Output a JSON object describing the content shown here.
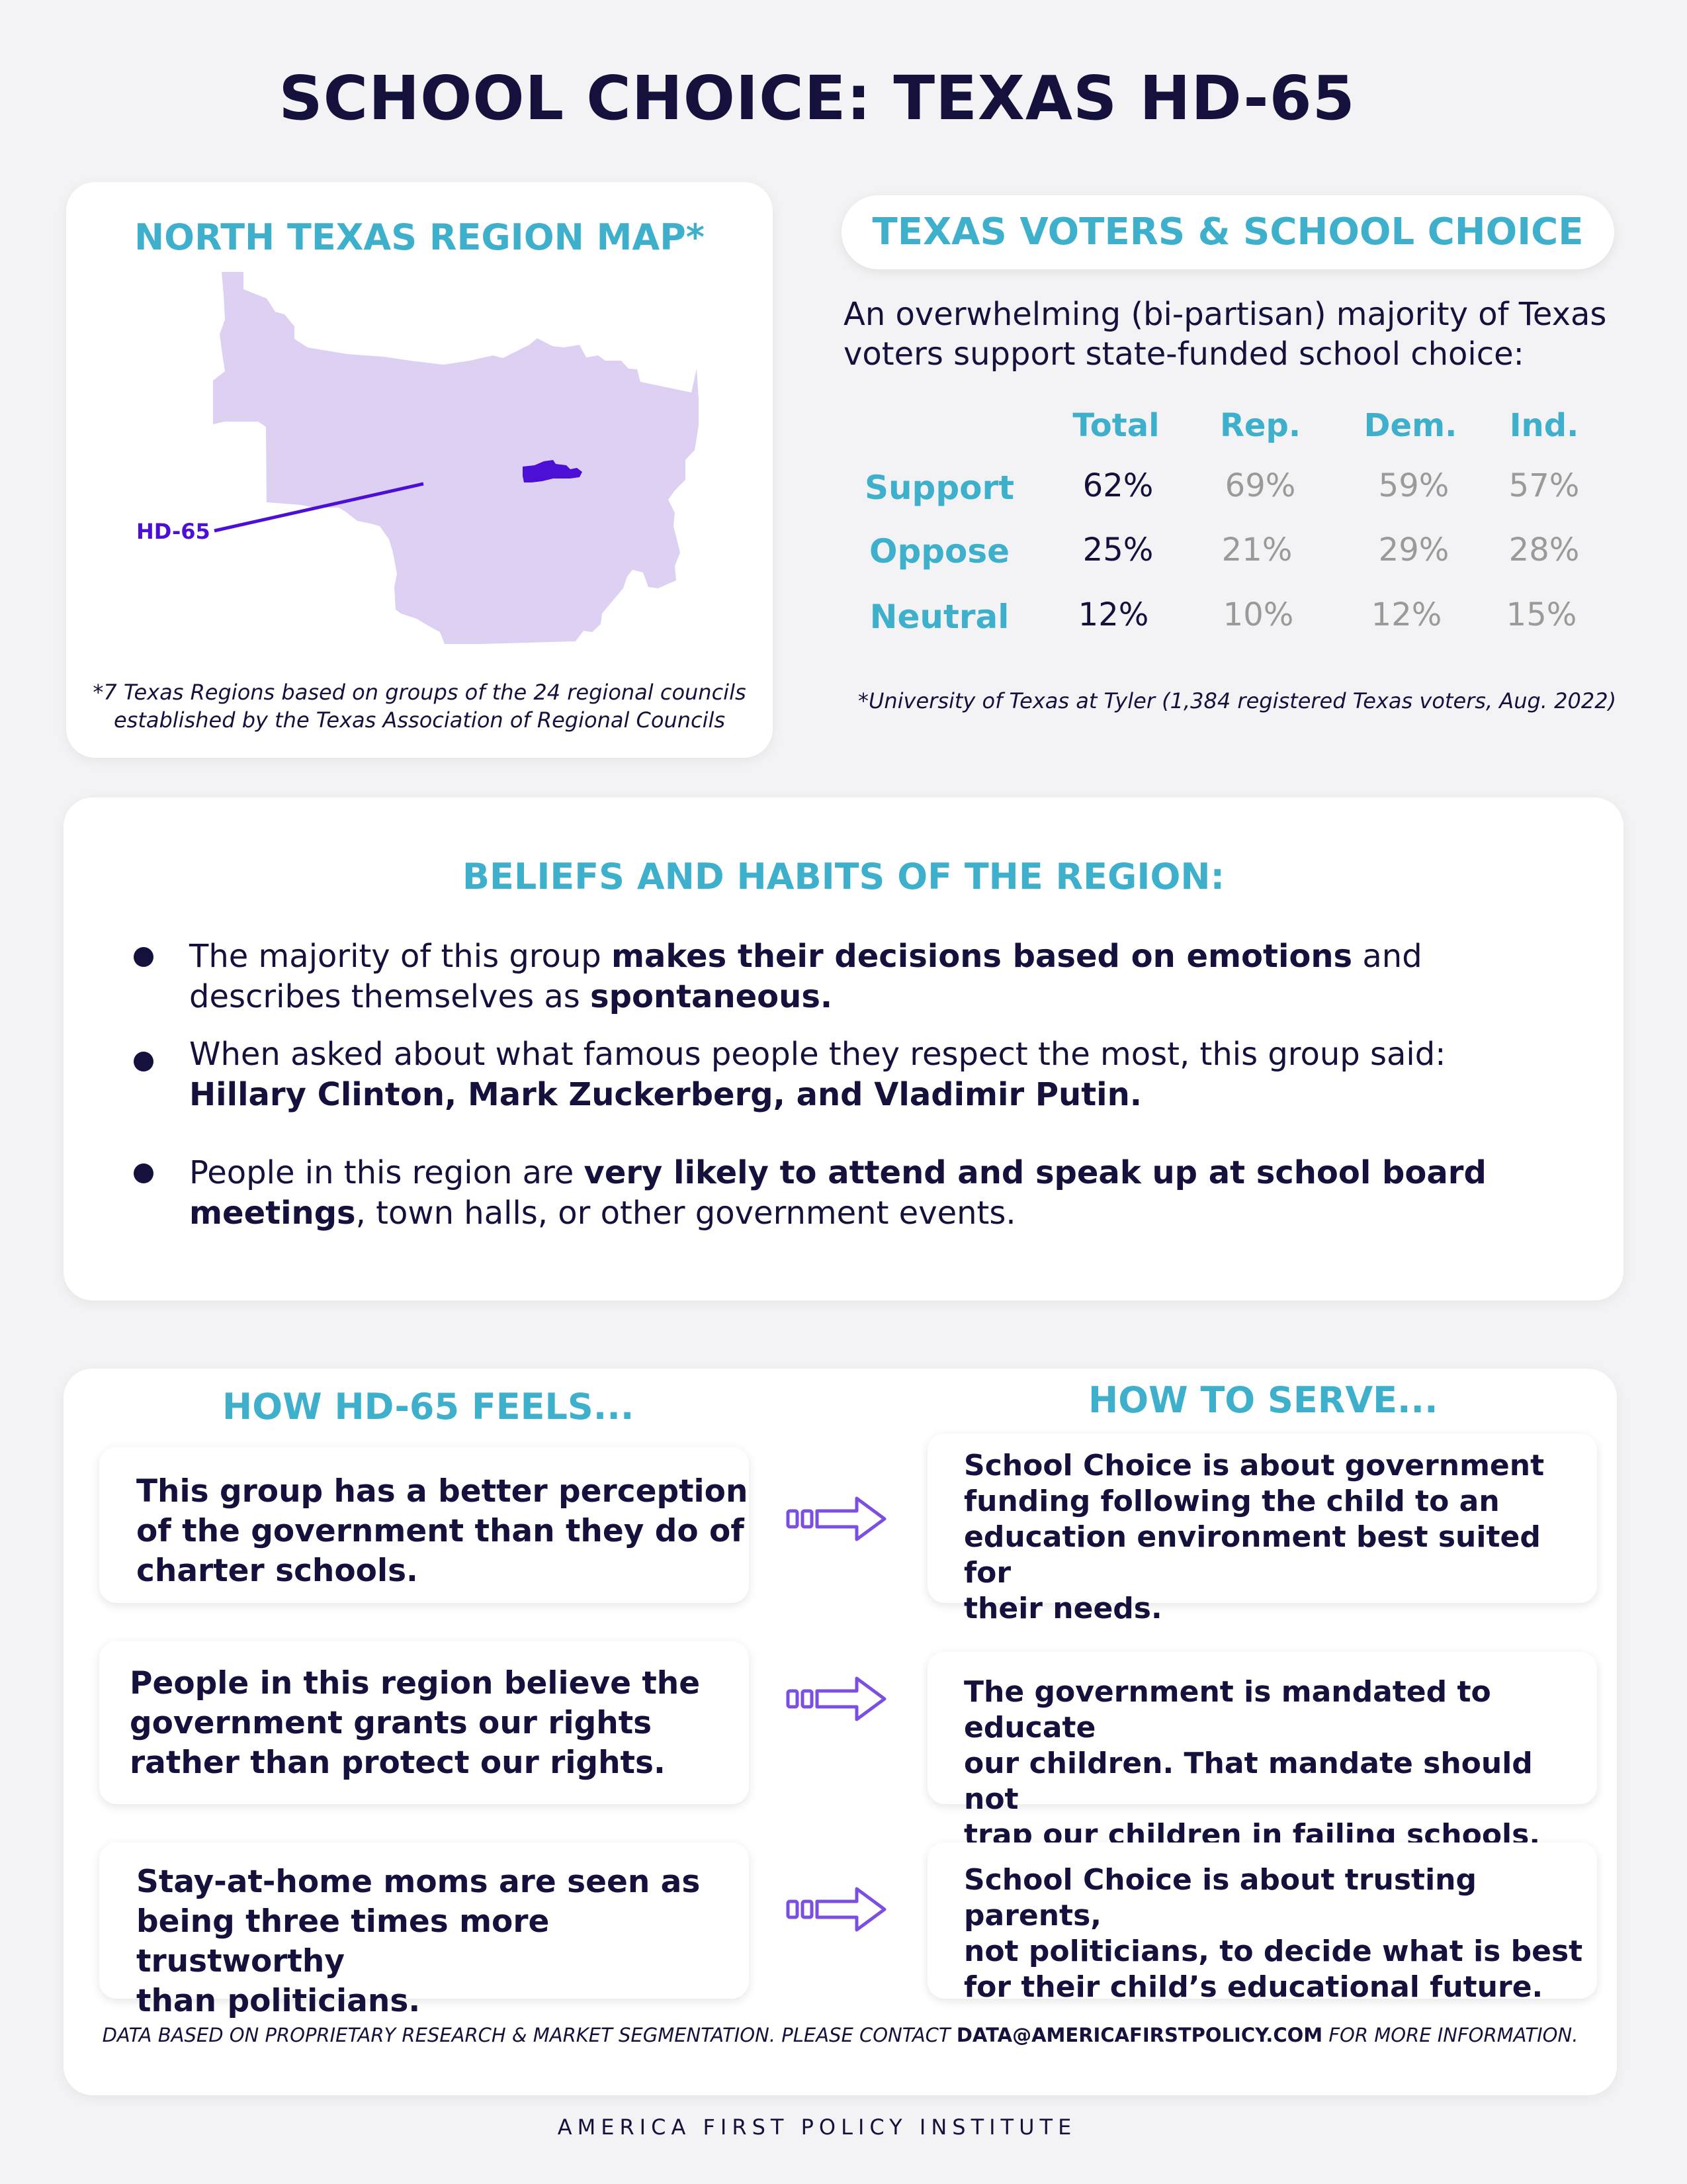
{
  "title": "SCHOOL CHOICE: TEXAS HD-65",
  "map": {
    "heading": "NORTH TEXAS REGION MAP*",
    "district_label": "HD-65",
    "note_line1": "*7 Texas Regions based on groups of the 24 regional councils",
    "note_line2": "established by the Texas Association of Regional Councils",
    "region_color": "#ddd0f3",
    "district_color": "#4b0fd6"
  },
  "voters": {
    "heading": "TEXAS VOTERS & SCHOOL CHOICE",
    "intro_line1": "An overwhelming (bi-partisan) majority of Texas",
    "intro_line2": "voters support state-funded school choice:",
    "columns": [
      "Total",
      "Rep.",
      "Dem.",
      "Ind."
    ],
    "rows": [
      {
        "label": "Support",
        "values": [
          "62%",
          "69%",
          "59%",
          "57%"
        ]
      },
      {
        "label": "Oppose",
        "values": [
          "25%",
          "21%",
          "29%",
          "28%"
        ]
      },
      {
        "label": "Neutral",
        "values": [
          "12%",
          "10%",
          "12%",
          "15%"
        ]
      }
    ],
    "source": "*University of Texas at Tyler (1,384 registered Texas voters, Aug. 2022)"
  },
  "beliefs": {
    "heading": "BELIEFS AND HABITS OF THE REGION:",
    "b1": {
      "t1": "The majority of this group ",
      "t2": "makes their decisions based on emotions",
      "t3": " and",
      "t4": "describes themselves as ",
      "t5": "spontaneous."
    },
    "b2": {
      "t1": "When asked about what famous people they respect the most, this group said:",
      "t2": "Hillary Clinton, Mark Zuckerberg, and Vladimir Putin."
    },
    "b3": {
      "t1": "People in this region are ",
      "t2": "very likely to attend and speak up at school board",
      "t3": "meetings",
      "t4": ", town halls, or other government events."
    }
  },
  "feels": {
    "heading_left": "HOW HD-65 FEELS...",
    "heading_right": "HOW TO SERVE...",
    "rows": [
      {
        "feel": [
          "This group has a better perception",
          "of the government than they do of",
          "charter schools."
        ],
        "serve": [
          "School Choice is about government",
          "funding following the child to an",
          "education environment best suited for",
          "their needs."
        ]
      },
      {
        "feel": [
          "People in this region believe the",
          "government grants our rights",
          "rather than protect our rights."
        ],
        "serve": [
          "The government is mandated to educate",
          "our children. That mandate should not",
          "trap our children in failing schools."
        ]
      },
      {
        "feel": [
          "Stay-at-home moms are seen as",
          "being three times more trustworthy",
          "than politicians."
        ],
        "serve": [
          "School Choice is about trusting parents,",
          "not politicians, to decide what is best",
          "for their child’s educational future."
        ]
      }
    ],
    "arrow_color": "#7b4fe0"
  },
  "footer": {
    "t1": "DATA BASED ON PROPRIETARY RESEARCH & MARKET SEGMENTATION. PLEASE CONTACT ",
    "email": "DATA@AMERICAFIRSTPOLICY.COM",
    "t2": " FOR MORE INFORMATION."
  },
  "org": "AMERICA FIRST POLICY INSTITUTE",
  "colors": {
    "navy": "#14123d",
    "teal": "#3fb0cc",
    "gray": "#9a9a9a"
  }
}
